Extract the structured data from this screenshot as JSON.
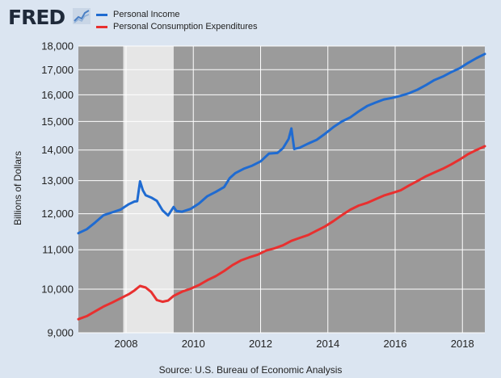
{
  "header": {
    "logo_text": "FRED",
    "logo_icon": "line-chart-icon"
  },
  "colors": {
    "background": "#dbe5f1",
    "plot_background": "#9b9b9b",
    "recession": "#e6e6e6",
    "grid": "#ffffff",
    "personal_income": "#1f6bd1",
    "pce": "#e8302f"
  },
  "source": "Source: U.S. Bureau of Economic Analysis",
  "chart_data": {
    "type": "line",
    "title": "",
    "xlabel": "",
    "ylabel": "Billions of Dollars",
    "yscale": "log",
    "xlim": [
      "2006-08",
      "2018-09"
    ],
    "ylim": [
      9000,
      18000
    ],
    "yticks": [
      9000,
      10000,
      11000,
      12000,
      13000,
      14000,
      15000,
      16000,
      17000,
      18000
    ],
    "ytick_labels": [
      "9,000",
      "10,000",
      "11,000",
      "12,000",
      "13,000",
      "14,000",
      "15,000",
      "16,000",
      "17,000",
      "18,000"
    ],
    "xticks": [
      "2008-01",
      "2010-01",
      "2012-01",
      "2014-01",
      "2016-01",
      "2018-01"
    ],
    "xtick_labels": [
      "2008",
      "2010",
      "2012",
      "2014",
      "2016",
      "2018"
    ],
    "grid": true,
    "legend_position": "top-left",
    "recessions": [
      {
        "start": "2007-12",
        "end": "2009-06"
      }
    ],
    "series": [
      {
        "name": "Personal Income",
        "color": "#1f6bd1",
        "points": [
          [
            "2006-08",
            11450
          ],
          [
            "2006-11",
            11560
          ],
          [
            "2007-02",
            11750
          ],
          [
            "2007-05",
            11960
          ],
          [
            "2007-08",
            12040
          ],
          [
            "2007-11",
            12120
          ],
          [
            "2008-02",
            12280
          ],
          [
            "2008-04",
            12360
          ],
          [
            "2008-05",
            12370
          ],
          [
            "2008-06",
            12980
          ],
          [
            "2008-07",
            12700
          ],
          [
            "2008-08",
            12550
          ],
          [
            "2008-10",
            12480
          ],
          [
            "2008-12",
            12380
          ],
          [
            "2009-02",
            12100
          ],
          [
            "2009-04",
            11950
          ],
          [
            "2009-06",
            12200
          ],
          [
            "2009-07",
            12080
          ],
          [
            "2009-09",
            12060
          ],
          [
            "2009-12",
            12140
          ],
          [
            "2010-03",
            12300
          ],
          [
            "2010-06",
            12520
          ],
          [
            "2010-09",
            12650
          ],
          [
            "2010-12",
            12800
          ],
          [
            "2011-02",
            13080
          ],
          [
            "2011-04",
            13240
          ],
          [
            "2011-07",
            13380
          ],
          [
            "2011-10",
            13480
          ],
          [
            "2012-01",
            13620
          ],
          [
            "2012-04",
            13880
          ],
          [
            "2012-07",
            13900
          ],
          [
            "2012-09",
            14060
          ],
          [
            "2012-11",
            14380
          ],
          [
            "2012-12",
            14750
          ],
          [
            "2013-01",
            14030
          ],
          [
            "2013-03",
            14080
          ],
          [
            "2013-06",
            14220
          ],
          [
            "2013-09",
            14350
          ],
          [
            "2013-12",
            14560
          ],
          [
            "2014-03",
            14800
          ],
          [
            "2014-06",
            15000
          ],
          [
            "2014-09",
            15150
          ],
          [
            "2014-12",
            15370
          ],
          [
            "2015-03",
            15570
          ],
          [
            "2015-06",
            15700
          ],
          [
            "2015-09",
            15820
          ],
          [
            "2015-12",
            15880
          ],
          [
            "2016-03",
            15960
          ],
          [
            "2016-06",
            16060
          ],
          [
            "2016-09",
            16200
          ],
          [
            "2016-12",
            16380
          ],
          [
            "2017-03",
            16580
          ],
          [
            "2017-06",
            16720
          ],
          [
            "2017-09",
            16900
          ],
          [
            "2017-12",
            17060
          ],
          [
            "2018-03",
            17280
          ],
          [
            "2018-06",
            17480
          ],
          [
            "2018-09",
            17660
          ]
        ]
      },
      {
        "name": "Personal Consumption Expenditures",
        "color": "#e8302f",
        "points": [
          [
            "2006-08",
            9300
          ],
          [
            "2006-11",
            9370
          ],
          [
            "2007-02",
            9480
          ],
          [
            "2007-05",
            9590
          ],
          [
            "2007-08",
            9680
          ],
          [
            "2007-11",
            9780
          ],
          [
            "2008-02",
            9880
          ],
          [
            "2008-04",
            9970
          ],
          [
            "2008-06",
            10080
          ],
          [
            "2008-08",
            10040
          ],
          [
            "2008-10",
            9930
          ],
          [
            "2008-12",
            9740
          ],
          [
            "2009-02",
            9700
          ],
          [
            "2009-04",
            9730
          ],
          [
            "2009-06",
            9840
          ],
          [
            "2009-09",
            9940
          ],
          [
            "2009-12",
            10010
          ],
          [
            "2010-03",
            10100
          ],
          [
            "2010-06",
            10220
          ],
          [
            "2010-09",
            10320
          ],
          [
            "2010-12",
            10450
          ],
          [
            "2011-03",
            10600
          ],
          [
            "2011-06",
            10720
          ],
          [
            "2011-09",
            10800
          ],
          [
            "2011-12",
            10870
          ],
          [
            "2012-03",
            10980
          ],
          [
            "2012-06",
            11040
          ],
          [
            "2012-09",
            11120
          ],
          [
            "2012-12",
            11240
          ],
          [
            "2013-03",
            11320
          ],
          [
            "2013-06",
            11400
          ],
          [
            "2013-09",
            11520
          ],
          [
            "2013-12",
            11640
          ],
          [
            "2014-03",
            11790
          ],
          [
            "2014-06",
            11960
          ],
          [
            "2014-09",
            12120
          ],
          [
            "2014-12",
            12240
          ],
          [
            "2015-03",
            12320
          ],
          [
            "2015-06",
            12430
          ],
          [
            "2015-09",
            12540
          ],
          [
            "2015-12",
            12620
          ],
          [
            "2016-03",
            12700
          ],
          [
            "2016-06",
            12850
          ],
          [
            "2016-09",
            12990
          ],
          [
            "2016-12",
            13140
          ],
          [
            "2017-03",
            13260
          ],
          [
            "2017-06",
            13380
          ],
          [
            "2017-09",
            13520
          ],
          [
            "2017-12",
            13680
          ],
          [
            "2018-03",
            13860
          ],
          [
            "2018-06",
            14000
          ],
          [
            "2018-09",
            14130
          ]
        ]
      }
    ]
  }
}
